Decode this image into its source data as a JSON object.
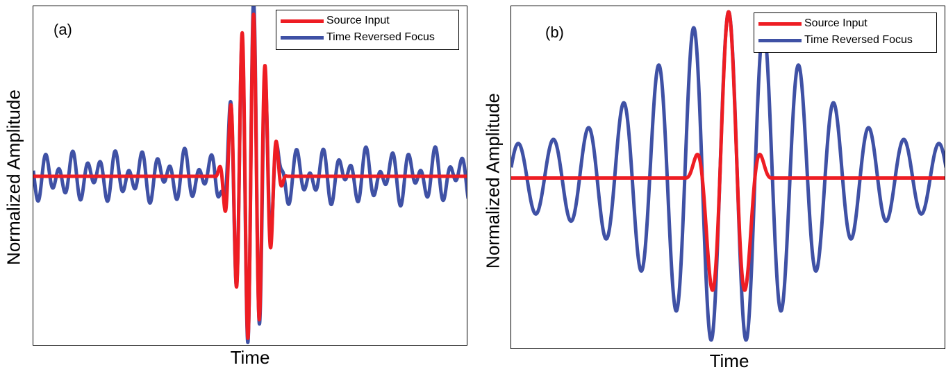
{
  "chart_data": [
    {
      "type": "line",
      "panel_label": "(a)",
      "xlabel": "Time",
      "ylabel": "Normalized Amplitude",
      "x_tick_labels": false,
      "y_tick_labels": false,
      "xlim": [
        -1,
        1
      ],
      "ylim": [
        -1,
        1
      ],
      "legend_position": "top-right",
      "series": [
        {
          "name": "Source Input",
          "color": "#ee1d23",
          "shape": "windowed tone burst, ~5 cycles, zero outside |t|<0.17",
          "window": [
            -0.17,
            0.17
          ],
          "peak_amplitude": 1.0
        },
        {
          "name": "Time Reversed Focus",
          "color": "#3f51a5",
          "shape": "focused burst at t=0 with low-level side noise",
          "peak_amplitude": 0.98,
          "side_noise_amplitude": 0.18
        }
      ]
    },
    {
      "type": "line",
      "panel_label": "(b)",
      "xlabel": "Time",
      "ylabel": "Normalized Amplitude",
      "x_tick_labels": false,
      "y_tick_labels": false,
      "xlim": [
        -1,
        1
      ],
      "ylim": [
        -1,
        1
      ],
      "legend_position": "top-right",
      "series": [
        {
          "name": "Source Input",
          "color": "#ee1d23",
          "shape": "windowed tone burst, ~3 cycles, zero outside |t|<0.2",
          "window": [
            -0.2,
            0.2
          ],
          "peak_amplitude": 1.0
        },
        {
          "name": "Time Reversed Focus",
          "color": "#3f51a5",
          "shape": "long oscillation with amplitude increasing toward t=0",
          "peak_amplitude": 1.0,
          "edge_amplitude": 0.2
        }
      ]
    }
  ]
}
